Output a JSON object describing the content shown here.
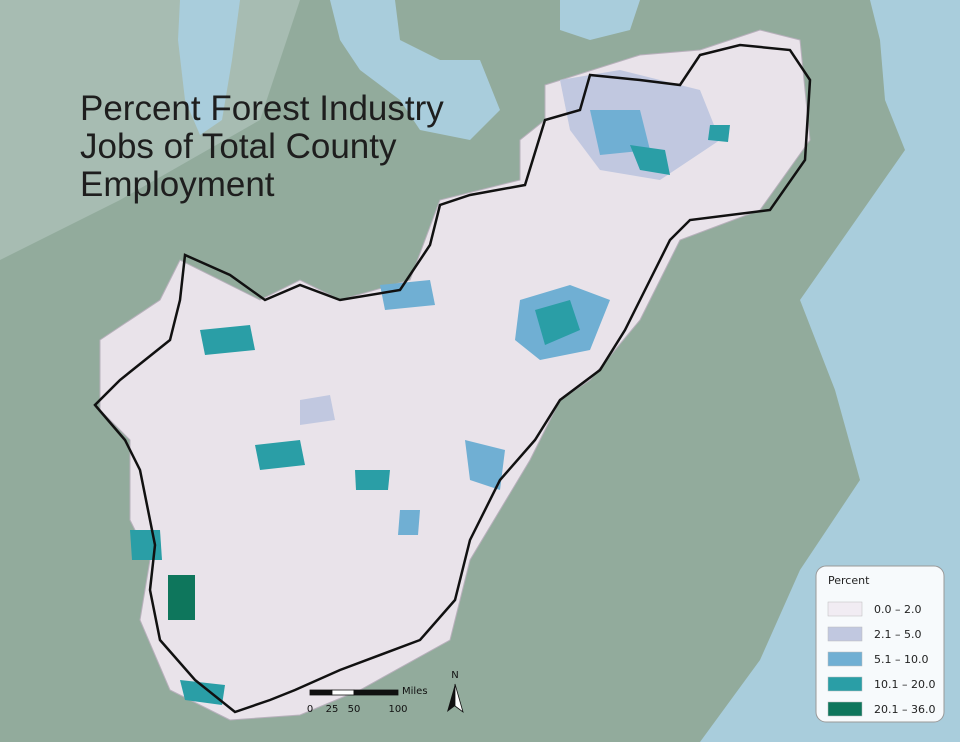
{
  "title": [
    "Percent Forest Industry",
    "Jobs of Total County",
    "Employment"
  ],
  "legend": {
    "title": "Percent",
    "items": [
      {
        "label": "0.0 – 2.0",
        "color": "#f1ecf3"
      },
      {
        "label": "2.1 – 5.0",
        "color": "#c1c8e0"
      },
      {
        "label": "5.1 – 10.0",
        "color": "#70afd3"
      },
      {
        "label": "10.1 – 20.0",
        "color": "#2a9ea6"
      },
      {
        "label": "20.1 – 36.0",
        "color": "#0e765c"
      }
    ]
  },
  "scale_bar": {
    "unit": "Miles",
    "ticks": [
      0,
      25,
      50,
      100
    ]
  },
  "north_arrow": "N"
}
